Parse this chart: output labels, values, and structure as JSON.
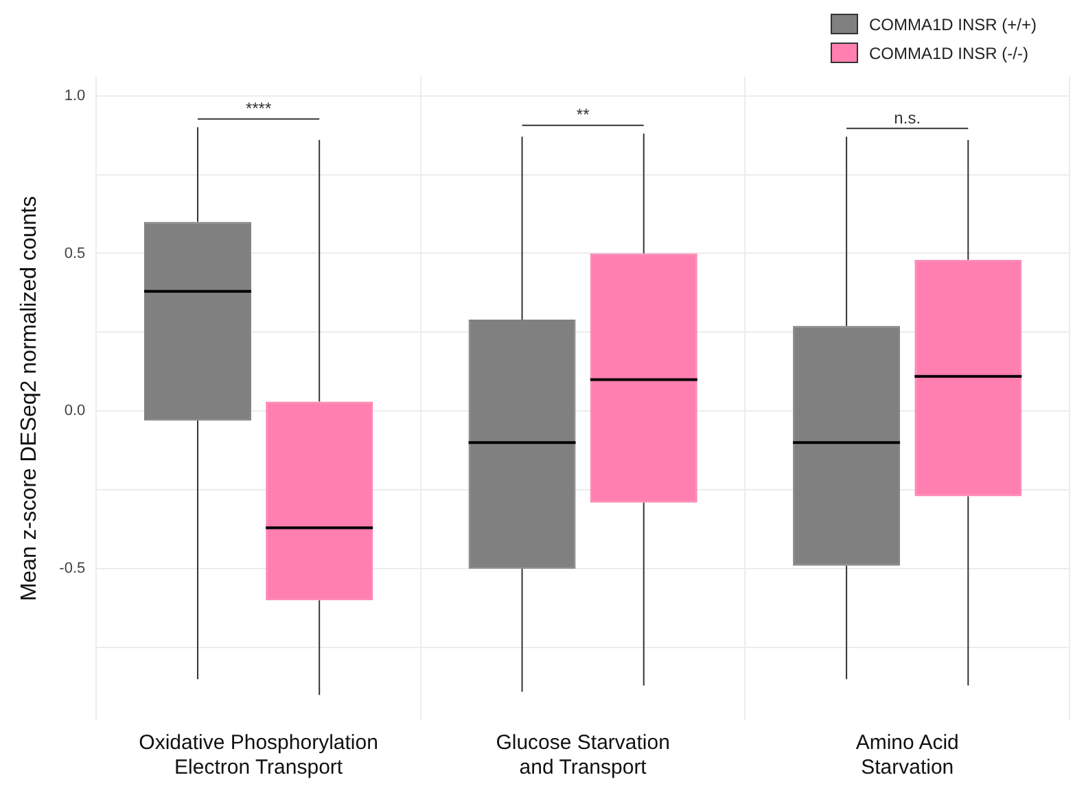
{
  "chart_data": {
    "type": "box",
    "ylabel": "Mean z-score DESeq2 normalized counts",
    "categories": [
      "Oxidative Phosphorylation\nElectron Transport",
      "Glucose Starvation\nand Transport",
      "Amino Acid\nStarvation"
    ],
    "series": [
      {
        "name": "COMMA1D INSR (+/+)",
        "color": "#808080",
        "boxes": [
          {
            "low": -0.85,
            "q1": -0.03,
            "median": 0.38,
            "q3": 0.6,
            "high": 0.9
          },
          {
            "low": -0.89,
            "q1": -0.5,
            "median": -0.1,
            "q3": 0.29,
            "high": 0.87
          },
          {
            "low": -0.85,
            "q1": -0.49,
            "median": -0.1,
            "q3": 0.27,
            "high": 0.87
          }
        ]
      },
      {
        "name": "COMMA1D INSR (-/-)",
        "color": "#ff80b0",
        "boxes": [
          {
            "low": -0.9,
            "q1": -0.6,
            "median": -0.37,
            "q3": 0.03,
            "high": 0.86
          },
          {
            "low": -0.87,
            "q1": -0.29,
            "median": 0.1,
            "q3": 0.5,
            "high": 0.88
          },
          {
            "low": -0.87,
            "q1": -0.27,
            "median": 0.11,
            "q3": 0.48,
            "high": 0.86
          }
        ]
      }
    ],
    "ylim": [
      -0.98,
      1.06
    ],
    "yticks": [
      {
        "value": -0.75,
        "label": null
      },
      -0.5,
      {
        "value": -0.25,
        "label": null
      },
      {
        "value": 0,
        "label": "0.0"
      },
      {
        "value": 0.25,
        "label": null
      },
      0.5,
      {
        "value": 0.75,
        "label": null
      },
      {
        "value": 1,
        "label": "1.0"
      }
    ],
    "annotations": [
      "****",
      "**",
      "n.s."
    ],
    "grid": true,
    "legend": "top right"
  }
}
